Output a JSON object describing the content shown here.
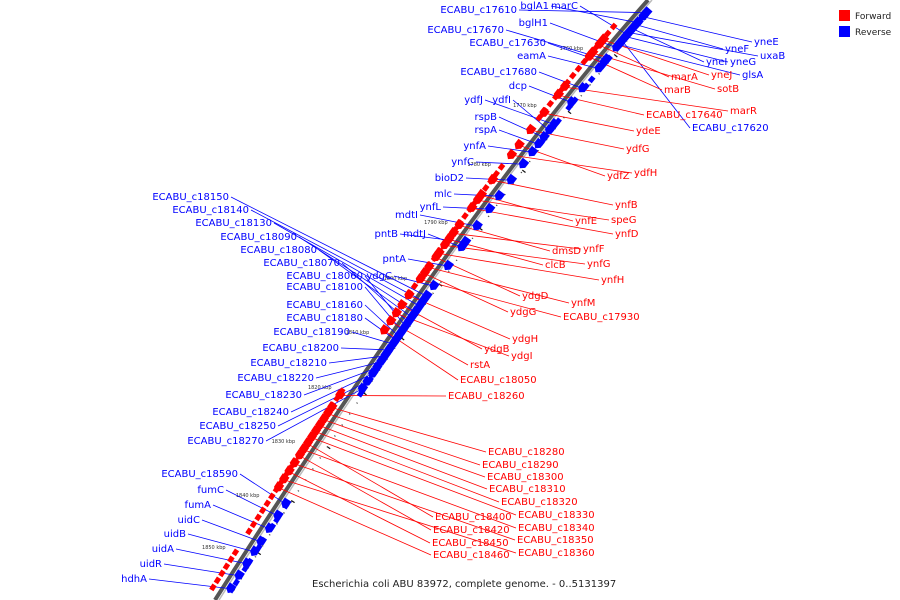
{
  "legend": [
    {
      "label": "Forward",
      "color": "#ff0000"
    },
    {
      "label": "Reverse",
      "color": "#0000ff"
    }
  ],
  "caption": "Escherichia coli ABU 83972, complete genome. - 0..5131397",
  "colors": {
    "forward": "#ff0000",
    "reverse": "#0000ff",
    "backbone": "#666666"
  },
  "ticks": [
    "1760 kbp",
    "1770 kbp",
    "1780 kbp",
    "1790 kbp",
    "1800 kbp",
    "1810 kbp",
    "1820 kbp",
    "1830 kbp",
    "1840 kbp",
    "1850 kbp"
  ],
  "reverse_genes": [
    "ECABU_c17610",
    "bglA1",
    "marC",
    "bglH1",
    "ECABU_c17670",
    "ECABU_c17630",
    "eamA",
    "ECABU_c17680",
    "dcp",
    "ydfJ",
    "ydfI",
    "rspB",
    "rspA",
    "ynfA",
    "ynfC",
    "bioD2",
    "mlc",
    "ynfL",
    "mdtI",
    "pntB",
    "mdtJ",
    "pntA",
    "ydgC",
    "ECABU_c18150",
    "ECABU_c18140",
    "ECABU_c18130",
    "ECABU_c18090",
    "ECABU_c18080",
    "ECABU_c18070",
    "ECABU_c18060",
    "ECABU_c18100",
    "ECABU_c18160",
    "ECABU_c18180",
    "ECABU_c18190",
    "ECABU_c18200",
    "ECABU_c18210",
    "ECABU_c18220",
    "ECABU_c18230",
    "ECABU_c18240",
    "ECABU_c18250",
    "ECABU_c18270",
    "ECABU_c18590",
    "fumC",
    "fumA",
    "uidC",
    "uidB",
    "uidA",
    "uidR",
    "hdhA",
    "yneE",
    "yneF",
    "uxaB",
    "yneI",
    "yneG",
    "glsA",
    "ECABU_c17620"
  ],
  "forward_genes": [
    "yneJ",
    "marA",
    "sotB",
    "marB",
    "marR",
    "ECABU_c17640",
    "ydeE",
    "ydfG",
    "ydfZ",
    "ydfH",
    "ynfB",
    "ynfE",
    "speG",
    "ynfD",
    "dmsD",
    "ynfF",
    "clcB",
    "ynfG",
    "ynfH",
    "ydgD",
    "ynfM",
    "ydgG",
    "ECABU_c17930",
    "ydgH",
    "ydgB",
    "ydgI",
    "rstA",
    "ECABU_c18050",
    "ECABU_c18260",
    "ECABU_c18280",
    "ECABU_c18290",
    "ECABU_c18300",
    "ECABU_c18310",
    "ECABU_c18320",
    "ECABU_c18330",
    "ECABU_c18400",
    "ECABU_c18340",
    "ECABU_c18420",
    "ECABU_c18350",
    "ECABU_c18450",
    "ECABU_c18360",
    "ECABU_c18460"
  ]
}
